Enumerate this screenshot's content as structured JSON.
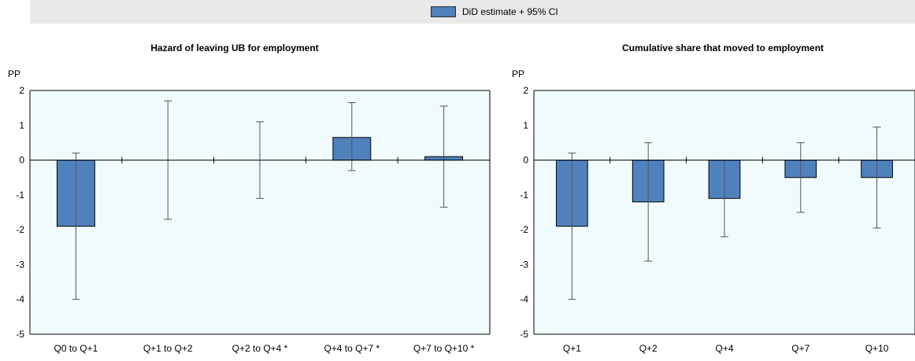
{
  "legend": {
    "label": "DiD estimate + 95% CI",
    "color": "#4f81bd"
  },
  "chart_data": [
    {
      "type": "bar",
      "title": "Hazard of leaving UB for employment",
      "ylabel": "PP",
      "ylim": [
        -5,
        2
      ],
      "yticks": [
        2,
        1,
        0,
        -1,
        -2,
        -3,
        -4,
        -5
      ],
      "categories": [
        "Q0 to Q+1",
        "Q+1 to Q+2",
        "Q+2 to Q+4 *",
        "Q+4 to Q+7 *",
        "Q+7 to Q+10 *"
      ],
      "series": [
        {
          "name": "DiD estimate + 95% CI",
          "values": [
            -1.9,
            0,
            0,
            0.65,
            0.1
          ],
          "ci_low": [
            -4.0,
            -1.7,
            -1.1,
            -0.3,
            -1.35
          ],
          "ci_high": [
            0.2,
            1.7,
            1.1,
            1.65,
            1.55
          ]
        }
      ],
      "grid": false,
      "legend_position": "top"
    },
    {
      "type": "bar",
      "title": "Cumulative share that moved to employment",
      "ylabel": "PP",
      "ylim": [
        -5,
        2
      ],
      "yticks": [
        2,
        1,
        0,
        -1,
        -2,
        -3,
        -4,
        -5
      ],
      "categories": [
        "Q+1",
        "Q+2",
        "Q+4",
        "Q+7",
        "Q+10"
      ],
      "series": [
        {
          "name": "DiD estimate + 95% CI",
          "values": [
            -1.9,
            -1.2,
            -1.1,
            -0.5,
            -0.5
          ],
          "ci_low": [
            -4.0,
            -2.9,
            -2.2,
            -1.5,
            -1.95
          ],
          "ci_high": [
            0.2,
            0.5,
            0.0,
            0.5,
            0.95
          ]
        }
      ],
      "grid": false,
      "legend_position": "top"
    }
  ]
}
